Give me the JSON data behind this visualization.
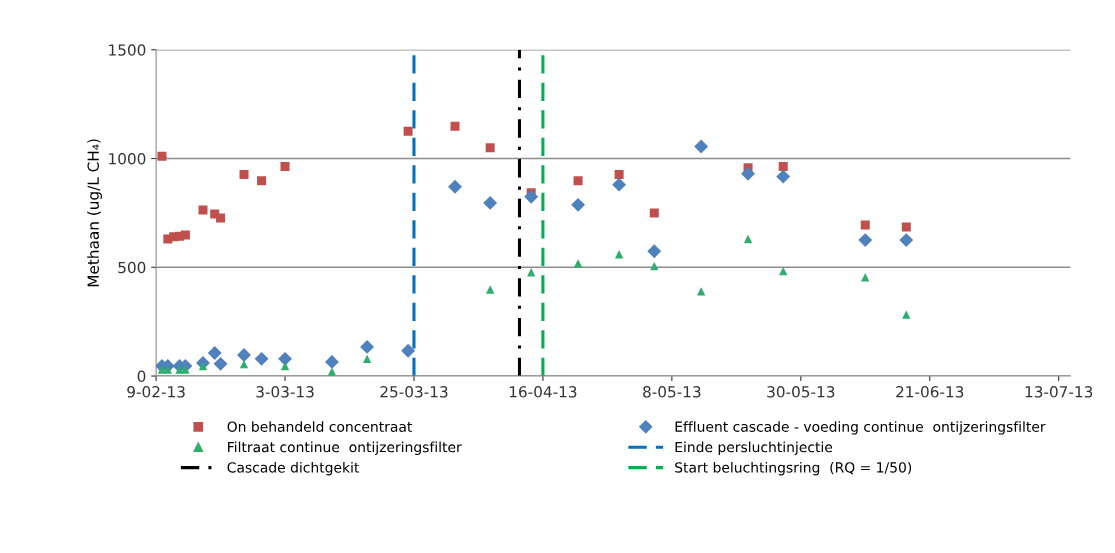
{
  "chart_data": {
    "type": "scatter",
    "ylabel": "Methaan (ug/L CH₄)",
    "series": [
      {
        "name": "On behandeld concentraat",
        "color": "#c0504d",
        "marker": "square",
        "x": [
          "2013-02-10",
          "2013-02-11",
          "2013-02-12",
          "2013-02-13",
          "2013-02-14",
          "2013-02-17",
          "2013-02-19",
          "2013-02-20",
          "2013-02-24",
          "2013-02-27",
          "2013-03-03",
          "2013-03-24",
          "2013-04-01",
          "2013-04-07",
          "2013-04-14",
          "2013-04-22",
          "2013-04-29",
          "2013-05-05",
          "2013-05-21",
          "2013-05-27",
          "2013-06-10",
          "2013-06-17"
        ],
        "values": [
          1010,
          630,
          640,
          643,
          648,
          763,
          745,
          727,
          926,
          898,
          963,
          1125,
          1148,
          1050,
          843,
          898,
          926,
          750,
          958,
          963,
          694,
          685
        ]
      },
      {
        "name": "Effluent cascade - voeding continue  ontijzeringsfilter",
        "color": "#4f81bd",
        "marker": "diamond",
        "x": [
          "2013-02-10",
          "2013-02-11",
          "2013-02-13",
          "2013-02-14",
          "2013-02-17",
          "2013-02-19",
          "2013-02-20",
          "2013-02-24",
          "2013-02-27",
          "2013-03-03",
          "2013-03-11",
          "2013-03-17",
          "2013-03-24",
          "2013-04-01",
          "2013-04-07",
          "2013-04-14",
          "2013-04-22",
          "2013-04-29",
          "2013-05-05",
          "2013-05-13",
          "2013-05-21",
          "2013-05-27",
          "2013-06-10",
          "2013-06-17"
        ],
        "values": [
          46,
          46,
          46,
          46,
          60,
          106,
          56,
          97,
          79,
          79,
          65,
          134,
          116,
          870,
          796,
          824,
          787,
          880,
          574,
          1055,
          930,
          917,
          625,
          625
        ]
      },
      {
        "name": "Filtraat continue  ontijzeringsfilter",
        "color": "#2eae6a",
        "marker": "triangle",
        "x": [
          "2013-02-10",
          "2013-02-11",
          "2013-02-13",
          "2013-02-14",
          "2013-02-17",
          "2013-02-24",
          "2013-03-03",
          "2013-03-11",
          "2013-03-17",
          "2013-04-07",
          "2013-04-14",
          "2013-04-22",
          "2013-04-29",
          "2013-05-05",
          "2013-05-13",
          "2013-05-21",
          "2013-05-27",
          "2013-06-10",
          "2013-06-17"
        ],
        "values": [
          30,
          30,
          30,
          30,
          46,
          55,
          46,
          20,
          79,
          398,
          477,
          518,
          560,
          505,
          389,
          630,
          482,
          454,
          282
        ]
      }
    ],
    "ref_lines": [
      {
        "axis": "x",
        "value": "2013-03-25",
        "label": "Einde persluchtinjectie",
        "color": "#0070c0",
        "line_style": "dashed"
      },
      {
        "axis": "x",
        "value": "2013-04-12",
        "label": "Cascade dichtgekit",
        "color": "#000000",
        "line_style": "dashdot"
      },
      {
        "axis": "x",
        "value": "2013-04-16",
        "label": "Start beluchtingsring  (RQ = 1/50)",
        "color": "#00b050",
        "line_style": "dashed"
      }
    ],
    "xlim": [
      "2013-02-09",
      "2013-07-15"
    ],
    "xticks": [
      {
        "value": "2013-02-09",
        "label": "9-02-13"
      },
      {
        "value": "2013-03-03",
        "label": "3-03-13"
      },
      {
        "value": "2013-03-25",
        "label": "25-03-13"
      },
      {
        "value": "2013-04-16",
        "label": "16-04-13"
      },
      {
        "value": "2013-05-08",
        "label": "8-05-13"
      },
      {
        "value": "2013-05-30",
        "label": "30-05-13"
      },
      {
        "value": "2013-06-21",
        "label": "21-06-13"
      },
      {
        "value": "2013-07-13",
        "label": "13-07-13"
      }
    ],
    "ylim": [
      0,
      1500
    ],
    "yticks": [
      0,
      500,
      1000,
      1500
    ],
    "grid": "y",
    "legend": "bottom"
  }
}
